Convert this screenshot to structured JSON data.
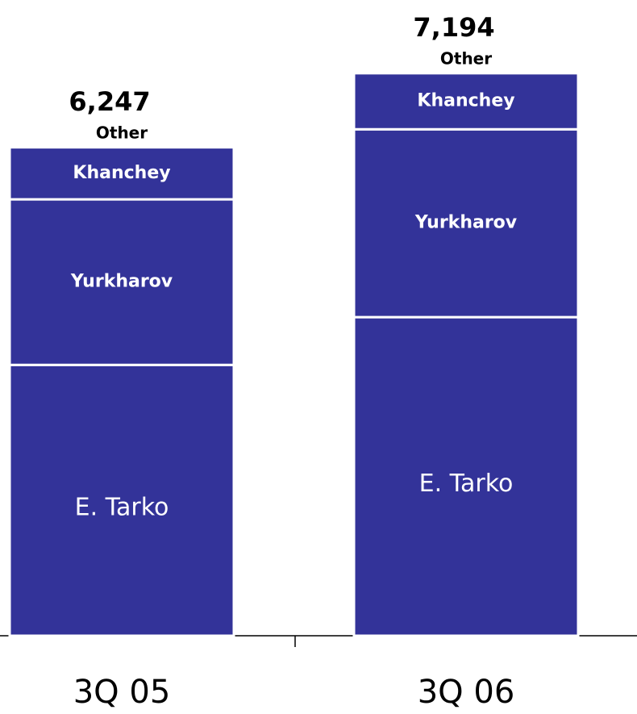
{
  "chart_data": {
    "type": "stacked_bar",
    "categories": [
      "3Q 05",
      "3Q 06"
    ],
    "series": [
      {
        "name": "E. Tarko",
        "color": "#333399",
        "values": [
          3460,
          4070
        ]
      },
      {
        "name": "Yurkharov",
        "color": "#333399",
        "values": [
          2115,
          2400
        ]
      },
      {
        "name": "Khanchey",
        "color": "#333399",
        "values": [
          665,
          717
        ]
      },
      {
        "name": "Other",
        "color": "#333399",
        "values": [
          7,
          7
        ]
      }
    ],
    "totals": [
      6247,
      7194
    ],
    "total_labels": [
      "6,247",
      "7,194"
    ]
  }
}
